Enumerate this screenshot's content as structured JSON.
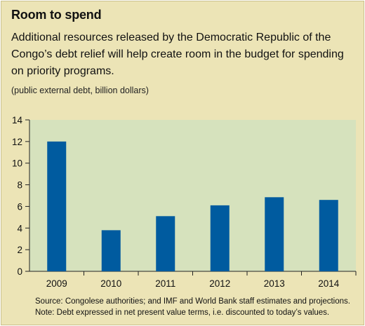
{
  "header": {
    "title": "Room to spend",
    "subtitle": "Additional resources released by the Democratic Republic of the Congo’s debt relief will help create room in the budget for spending on priority programs.",
    "units": "(public external debt, billion dollars)"
  },
  "footer": {
    "source": "Source: Congolese authorities; and IMF and World Bank staff estimates and projections.",
    "note": "Note: Debt expressed in net present value terms, i.e. discounted to today’s values."
  },
  "colors": {
    "panel": "#ece4b6",
    "plot_area": "#d6e2bd",
    "bar": "#005b9f"
  },
  "chart_data": {
    "type": "bar",
    "categories": [
      "2009",
      "2010",
      "2011",
      "2012",
      "2013",
      "2014"
    ],
    "values": [
      12.0,
      3.8,
      5.1,
      6.1,
      6.85,
      6.6
    ],
    "ylim": [
      0,
      14
    ],
    "yticks": [
      "0",
      "2",
      "4",
      "6",
      "8",
      "10",
      "12",
      "14"
    ],
    "grid": false
  }
}
